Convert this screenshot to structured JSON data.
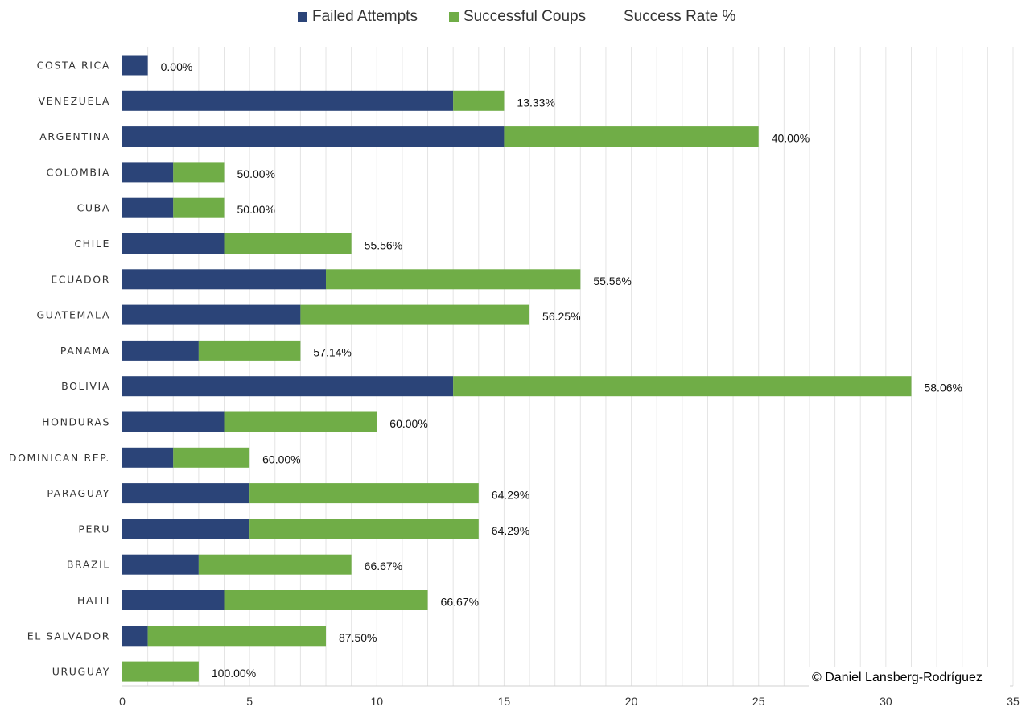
{
  "chart_data": {
    "type": "bar",
    "orientation": "horizontal",
    "stacked": true,
    "categories": [
      "COSTA RICA",
      "VENEZUELA",
      "ARGENTINA",
      "COLOMBIA",
      "CUBA",
      "CHILE",
      "ECUADOR",
      "GUATEMALA",
      "PANAMA",
      "BOLIVIA",
      "HONDURAS",
      "DOMINICAN REP.",
      "PARAGUAY",
      "PERU",
      "BRAZIL",
      "HAITI",
      "EL SALVADOR",
      "URUGUAY"
    ],
    "series": [
      {
        "name": "Failed Attempts",
        "color": "#2b4478",
        "values": [
          1,
          13,
          15,
          2,
          2,
          4,
          8,
          7,
          3,
          13,
          4,
          2,
          5,
          5,
          3,
          4,
          1,
          0
        ]
      },
      {
        "name": "Successful Coups",
        "color": "#70ad47",
        "values": [
          0,
          2,
          10,
          2,
          2,
          5,
          10,
          9,
          4,
          18,
          6,
          3,
          9,
          9,
          6,
          8,
          7,
          3
        ]
      }
    ],
    "rate_series": {
      "name": "Success Rate %",
      "labels": [
        "0.00%",
        "13.33%",
        "40.00%",
        "50.00%",
        "50.00%",
        "55.56%",
        "55.56%",
        "56.25%",
        "57.14%",
        "58.06%",
        "60.00%",
        "60.00%",
        "64.29%",
        "64.29%",
        "66.67%",
        "66.67%",
        "87.50%",
        "100.00%"
      ]
    },
    "xlim": [
      0,
      35
    ],
    "xticks": [
      "0",
      "5",
      "10",
      "15",
      "20",
      "25",
      "30",
      "35"
    ],
    "grid": true,
    "legend_position": "top",
    "title": "",
    "xlabel": "",
    "ylabel": ""
  },
  "credit": "© Daniel Lansberg-Rodríguez"
}
